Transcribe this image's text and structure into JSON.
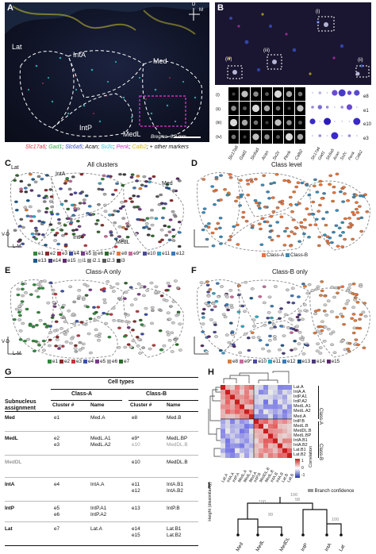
{
  "panels": {
    "A": {
      "label": "A",
      "regions": [
        "Lat",
        "IntA",
        "Med",
        "IntP",
        "MedL"
      ],
      "bregma": "Bregma -6.3 mm",
      "compass": {
        "d": "D",
        "m": "M"
      },
      "marker_line": [
        {
          "text": "Slc17a6",
          "color": "#e0334a"
        },
        {
          "text": "; ",
          "color": "#111111"
        },
        {
          "text": "Gad1",
          "color": "#38a84a"
        },
        {
          "text": "; ",
          "color": "#111111"
        },
        {
          "text": "Slc6a5",
          "color": "#2f46c8"
        },
        {
          "text": "; ",
          "color": "#111111"
        },
        {
          "text": "Acan",
          "color": "#111111"
        },
        {
          "text": "; ",
          "color": "#111111"
        },
        {
          "text": "Sv2c",
          "color": "#27c3d8"
        },
        {
          "text": "; ",
          "color": "#111111"
        },
        {
          "text": "Penk",
          "color": "#d038c8"
        },
        {
          "text": "; ",
          "color": "#111111"
        },
        {
          "text": "Calb2",
          "color": "#d9b823"
        },
        {
          "text": "; + other markers",
          "color": "#111111"
        }
      ]
    },
    "B": {
      "label": "B",
      "insets": [
        "(i)",
        "(ii)",
        "(iii)",
        "(iv)"
      ],
      "row_labels": [
        "(i)",
        "(ii)",
        "(iii)",
        "(iv)"
      ],
      "genes": [
        "Slc17a6",
        "Gad1",
        "Slc6a5",
        "Acan",
        "Sv2c",
        "Penk",
        "Calb2"
      ],
      "cluster_labels": [
        "e8",
        "e1",
        "e10",
        "e3"
      ]
    },
    "C": {
      "label": "C",
      "title": "All clusters",
      "regions": [
        "Lat",
        "IntA",
        "Med",
        "IntP",
        "MedL"
      ],
      "axis_v": "V-D",
      "axis_h": "L-M",
      "legend": [
        {
          "name": "e1",
          "color": "#2f8a3a"
        },
        {
          "name": "e2",
          "color": "#8a2a2a"
        },
        {
          "name": "e3",
          "color": "#c8323c"
        },
        {
          "name": "e4",
          "color": "#3b4fa8"
        },
        {
          "name": "e5",
          "color": "#7a3a8a"
        },
        {
          "name": "e6",
          "color": "#a8a8a8"
        },
        {
          "name": "e7",
          "color": "#2a6a2a"
        },
        {
          "name": "e8",
          "color": "#e07a3a"
        },
        {
          "name": "e9*",
          "color": "#c86a9a"
        },
        {
          "name": "e10",
          "color": "#4a4a9a"
        },
        {
          "name": "e11",
          "color": "#2aa8c8"
        },
        {
          "name": "e12",
          "color": "#3a7ab8"
        },
        {
          "name": "e13",
          "color": "#1a5a8a"
        },
        {
          "name": "e14",
          "color": "#4a3a7a"
        },
        {
          "name": "e15",
          "color": "#5a2a6a"
        },
        {
          "name": "i1",
          "color": "#c8c8c8"
        },
        {
          "name": "i2.1",
          "color": "#8a8a8a"
        },
        {
          "name": "i2.3",
          "color": "#5a5a5a"
        },
        {
          "name": "i3",
          "color": "#3a3a3a"
        }
      ]
    },
    "D": {
      "label": "D",
      "title": "Class level",
      "legend": [
        {
          "name": "Class-A",
          "color": "#e8743a"
        },
        {
          "name": "Class-B",
          "color": "#3a8ab8"
        }
      ]
    },
    "E": {
      "label": "E",
      "title": "Class-A only",
      "axis_v": "V-D",
      "axis_h": "L-M",
      "legend": [
        {
          "name": "e1",
          "color": "#2f8a3a"
        },
        {
          "name": "e2",
          "color": "#8a2a2a"
        },
        {
          "name": "e3",
          "color": "#c8323c"
        },
        {
          "name": "e4",
          "color": "#3b4fa8"
        },
        {
          "name": "e5",
          "color": "#7a3a8a"
        },
        {
          "name": "e6",
          "color": "#a8a8a8"
        },
        {
          "name": "e7",
          "color": "#2a6a2a"
        }
      ]
    },
    "F": {
      "label": "F",
      "title": "Class-B only",
      "legend": [
        {
          "name": "e8",
          "color": "#e07a3a"
        },
        {
          "name": "e9*",
          "color": "#c86a9a"
        },
        {
          "name": "e10",
          "color": "#4a4a9a"
        },
        {
          "name": "e11",
          "color": "#2aa8c8"
        },
        {
          "name": "e12",
          "color": "#3a7ab8"
        },
        {
          "name": "e13",
          "color": "#1a5a8a"
        },
        {
          "name": "e14",
          "color": "#4a3a7a"
        },
        {
          "name": "e15",
          "color": "#5a2a6a"
        }
      ]
    },
    "G": {
      "label": "G",
      "header_cell_types": "Cell types",
      "header_subnucleus": "Subnucleus assignment",
      "header_class_a": "Class-A",
      "header_class_b": "Class-B",
      "header_cluster": "Cluster #",
      "header_name": "Name",
      "rows": [
        {
          "region": "Med",
          "a_cluster": [
            "e1"
          ],
          "a_name": [
            "Med.A"
          ],
          "b_cluster": [
            "e8"
          ],
          "b_name": [
            "Med.B"
          ]
        },
        {
          "region": "MedL",
          "a_cluster": [
            "e2",
            "e3"
          ],
          "a_name": [
            "MedL.A1",
            "MedL.A2"
          ],
          "b_cluster": [
            "e9*",
            "e10"
          ],
          "b_name": [
            "MedL.BP",
            "MedDL.B"
          ]
        },
        {
          "region": "MedDL",
          "a_cluster": [],
          "a_name": [],
          "b_cluster": [
            "e10"
          ],
          "b_name": [
            "MedDL.B"
          ]
        },
        {
          "region": "IntA",
          "a_cluster": [
            "e4"
          ],
          "a_name": [
            "IntA.A"
          ],
          "b_cluster": [
            "e11",
            "e12"
          ],
          "b_name": [
            "IntA.B1",
            "IntA.B2"
          ]
        },
        {
          "region": "IntP",
          "a_cluster": [
            "e5",
            "e6"
          ],
          "a_name": [
            "IntP.A1",
            "IntP.A2"
          ],
          "b_cluster": [
            "e13"
          ],
          "b_name": [
            "IntP.B"
          ]
        },
        {
          "region": "Lat",
          "a_cluster": [
            "e7"
          ],
          "a_name": [
            "Lat.A"
          ],
          "b_cluster": [
            "e14",
            "e15"
          ],
          "b_name": [
            "Lat.B1",
            "Lat.B2"
          ]
        }
      ]
    },
    "H": {
      "label": "H",
      "row_labels": [
        "Lat.A",
        "IntA.A",
        "IntP.A1",
        "IntP.A2",
        "MedL.A1",
        "MedL.A2",
        "Med.A",
        "IntP.B",
        "MedL.B",
        "MedDL.B",
        "MedL.BP",
        "IntA.B1",
        "IntA.B2",
        "Lat.B1",
        "Lat.B2"
      ],
      "col_labels": [
        "Lat.A",
        "IntA.A",
        "IntP.A",
        "MedL.A",
        "MedL.A",
        "Med.A",
        "IntP.B",
        "MedDL.B",
        "MedL.B",
        "IntA.B",
        "IntA.B",
        "Lat.B",
        "Lat.B"
      ],
      "class_a": "Class-A",
      "class_b": "Class-B",
      "colorbar_label": "Correlation",
      "colorbar_ticks": [
        "1",
        "0",
        "-1"
      ]
    },
    "I": {
      "label": "I",
      "legend": "Branch confidence",
      "ylabel": "Height (dissimilarity)",
      "leaves": [
        "Med",
        "MedL",
        "MedDL",
        "IntP",
        "IntA",
        "Lat"
      ],
      "confidences": [
        "100",
        "58",
        "100",
        "99",
        "100"
      ]
    }
  }
}
